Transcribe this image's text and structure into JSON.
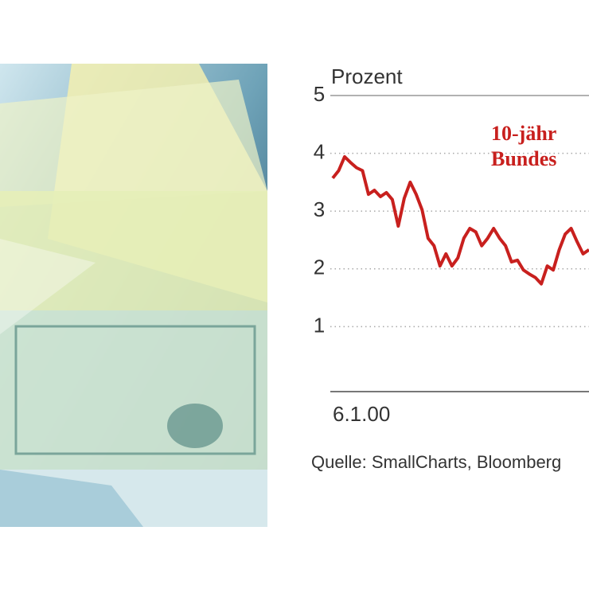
{
  "chart_data": {
    "type": "line",
    "y_label": "Prozent",
    "annotation": [
      "10-jähr",
      "Bundes"
    ],
    "source": "Quelle: SmallCharts, Bloomberg",
    "categories": [
      "6.1.00",
      null,
      null,
      null,
      null,
      null,
      null,
      null,
      null,
      null,
      null,
      null,
      null,
      null,
      null,
      null,
      null,
      null,
      null,
      null,
      null,
      null,
      null,
      null,
      null,
      null,
      null,
      null,
      null,
      null,
      null,
      null,
      null,
      null,
      null,
      null,
      null,
      null,
      null,
      null,
      null,
      null,
      null,
      null
    ],
    "values": [
      3.57,
      3.7,
      3.94,
      3.84,
      3.75,
      3.7,
      3.29,
      3.36,
      3.25,
      3.32,
      3.2,
      2.74,
      3.22,
      3.5,
      3.29,
      3.02,
      2.53,
      2.4,
      2.05,
      2.26,
      2.05,
      2.19,
      2.53,
      2.7,
      2.64,
      2.4,
      2.53,
      2.7,
      2.53,
      2.4,
      2.12,
      2.15,
      1.98,
      1.91,
      1.85,
      1.74,
      2.05,
      1.98,
      2.33,
      2.6,
      2.7,
      2.47,
      2.26,
      2.33
    ],
    "color": "#c8201e",
    "ylim": [
      0,
      5
    ],
    "yticks": [
      1,
      2,
      3,
      4,
      5
    ],
    "grid": true
  }
}
